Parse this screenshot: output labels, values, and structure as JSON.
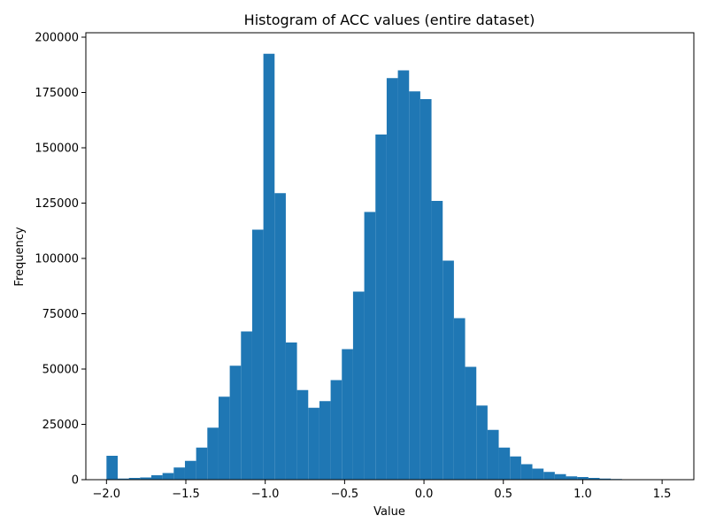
{
  "chart_data": {
    "type": "bar",
    "title": "Histogram of ACC values (entire dataset)",
    "xlabel": "Value",
    "ylabel": "Frequency",
    "xlim": [
      -2.13,
      1.7
    ],
    "ylim": [
      0,
      202000
    ],
    "xticks": [
      -2.0,
      -1.5,
      -1.0,
      -0.5,
      0.0,
      0.5,
      1.0,
      1.5
    ],
    "xtick_labels": [
      "−2.0",
      "−1.5",
      "−1.0",
      "−0.5",
      "0.0",
      "0.5",
      "1.0",
      "1.5"
    ],
    "yticks": [
      0,
      25000,
      50000,
      75000,
      100000,
      125000,
      150000,
      175000,
      200000
    ],
    "ytick_labels": [
      "0",
      "25000",
      "50000",
      "75000",
      "100000",
      "125000",
      "150000",
      "175000",
      "200000"
    ],
    "bar_color": "#1f77b4",
    "grid": false,
    "bins": {
      "start": -2.0,
      "width": 0.0706,
      "counts": [
        10800,
        500,
        800,
        1000,
        2000,
        3000,
        5500,
        8500,
        14500,
        23500,
        37500,
        51500,
        67000,
        113000,
        192500,
        129500,
        62000,
        40500,
        32500,
        35500,
        45000,
        59000,
        85000,
        121000,
        156000,
        181500,
        185000,
        175500,
        172000,
        126000,
        99000,
        73000,
        51000,
        33500,
        22500,
        14500,
        10500,
        7000,
        5000,
        3500,
        2500,
        1500,
        1200,
        800,
        500,
        300,
        200,
        100,
        50,
        20
      ]
    }
  }
}
